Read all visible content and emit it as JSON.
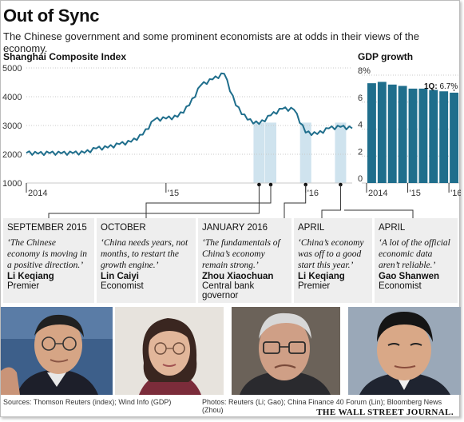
{
  "header": {
    "title": "Out of Sync",
    "subtitle": "The Chinese government and some prominent economists are at odds in their views of the economy."
  },
  "chart_data": [
    {
      "type": "line",
      "title": "Shanghai Composite Index",
      "x_ticks": [
        "2014",
        "'15",
        "'16"
      ],
      "y_ticks": [
        "1000",
        "2000",
        "3000",
        "4000",
        "5000"
      ],
      "ylim": [
        1000,
        5000
      ],
      "grid": true,
      "series": [
        {
          "x": [
            "2014-01",
            "2014-02",
            "2014-03",
            "2014-04",
            "2014-05",
            "2014-06",
            "2014-07",
            "2014-08",
            "2014-09",
            "2014-10",
            "2014-11",
            "2014-12",
            "2015-01",
            "2015-02",
            "2015-03",
            "2015-04",
            "2015-05",
            "2015-06",
            "2015-07",
            "2015-08",
            "2015-09",
            "2015-10",
            "2015-11",
            "2015-12",
            "2016-01",
            "2016-02",
            "2016-03",
            "2016-04",
            "2016-05"
          ],
          "values": [
            2050,
            2020,
            2040,
            2030,
            2040,
            2050,
            2200,
            2230,
            2350,
            2430,
            2680,
            3200,
            3240,
            3300,
            3700,
            4400,
            4600,
            4800,
            3700,
            3200,
            3050,
            3350,
            3580,
            3550,
            2750,
            2700,
            2900,
            2950,
            2900
          ]
        }
      ],
      "highlights": [
        "SEPTEMBER 2015",
        "OCTOBER",
        "JANUARY 2016",
        "APRIL"
      ]
    },
    {
      "type": "bar",
      "title": "GDP growth",
      "x_ticks": [
        "2014",
        "'15",
        "'16"
      ],
      "y_ticks": [
        "0",
        "2",
        "4",
        "6",
        "8%"
      ],
      "ylim": [
        0,
        8
      ],
      "grid": true,
      "values": [
        7.4,
        7.5,
        7.3,
        7.2,
        7.0,
        7.0,
        6.9,
        6.8,
        6.7
      ],
      "annotation": {
        "label": "1Q:",
        "value": "6.7%"
      }
    }
  ],
  "quotes": [
    {
      "date": "SEPTEMBER 2015",
      "text": "‘The Chinese economy is moving in a positive direction.’",
      "name": "Li Keqiang",
      "role": "Premier"
    },
    {
      "date": "OCTOBER",
      "text": "‘China needs years, not months, to restart the growth engine.’",
      "name": "Lin Caiyi",
      "role": "Economist"
    },
    {
      "date": "JANUARY 2016",
      "text": "‘The fundamentals of China’s economy remain strong.’",
      "name": "Zhou Xiaochuan",
      "role": "Central bank governor"
    },
    {
      "date": "APRIL",
      "text": "‘China’s economy was off to a good start this year.’",
      "name": "Li Keqiang",
      "role": "Premier"
    },
    {
      "date": "APRIL",
      "text": "‘A lot of the official economic data aren’t reliable.’",
      "name": "Gao Shanwen",
      "role": "Economist"
    }
  ],
  "footer": {
    "sources_left": "Sources: Thomson Reuters (index); Wind Info (GDP)",
    "sources_right": "Photos: Reuters (Li; Gao); China Finance 40 Forum (Lin); Bloomberg News (Zhou)",
    "masthead": "THE WALL STREET JOURNAL."
  },
  "colors": {
    "line": "#1f6e8c",
    "bar": "#1f6e8c",
    "highlight": "#cfe3ee",
    "grid": "#c8c8c8",
    "quote_bg": "#eeeeee"
  }
}
